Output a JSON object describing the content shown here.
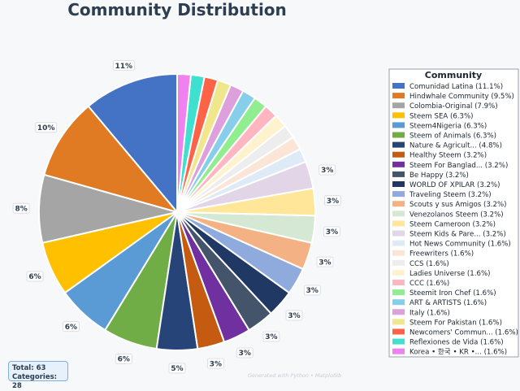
{
  "chart_data": {
    "type": "pie",
    "title": "Community Distribution",
    "legend_title": "Community",
    "legend_position": "right",
    "total_label": "Total: 63",
    "categories_label": "Categories: 28",
    "watermark": "Generated with Python • Matplotlib",
    "slices": [
      {
        "label": "Comunidad Latina",
        "legend": "Comunidad Latina (11.1%)",
        "count": 7,
        "pct_label": "11%",
        "color": "#4472c4"
      },
      {
        "label": "Hindwhale Community",
        "legend": "Hindwhale Community (9.5%)",
        "count": 6,
        "pct_label": "10%",
        "color": "#e07b24"
      },
      {
        "label": "Colombia-Original",
        "legend": "Colombia-Original (7.9%)",
        "count": 5,
        "pct_label": "8%",
        "color": "#a5a5a5"
      },
      {
        "label": "Steem SEA",
        "legend": "Steem SEA (6.3%)",
        "count": 4,
        "pct_label": "6%",
        "color": "#ffc000"
      },
      {
        "label": "Steem4Nigeria",
        "legend": "Steem4Nigeria (6.3%)",
        "count": 4,
        "pct_label": "6%",
        "color": "#5b9bd5"
      },
      {
        "label": "Steem of Animals",
        "legend": "Steem of Animals (6.3%)",
        "count": 4,
        "pct_label": "6%",
        "color": "#70ad47"
      },
      {
        "label": "Nature & Agricult...",
        "legend": "Nature & Agricult... (4.8%)",
        "count": 3,
        "pct_label": "5%",
        "color": "#264478"
      },
      {
        "label": "Healthy Steem",
        "legend": "Healthy Steem (3.2%)",
        "count": 2,
        "pct_label": "3%",
        "color": "#c55a11"
      },
      {
        "label": "Steem For Banglad...",
        "legend": "Steem For Banglad... (3.2%)",
        "count": 2,
        "pct_label": "3%",
        "color": "#7030a0"
      },
      {
        "label": "Be Happy",
        "legend": "Be Happy (3.2%)",
        "count": 2,
        "pct_label": "3%",
        "color": "#44546a"
      },
      {
        "label": "WORLD OF XPILAR",
        "legend": "WORLD OF XPILAR (3.2%)",
        "count": 2,
        "pct_label": "3%",
        "color": "#1f3864"
      },
      {
        "label": "Traveling Steem",
        "legend": "Traveling Steem (3.2%)",
        "count": 2,
        "pct_label": "3%",
        "color": "#8faadc"
      },
      {
        "label": "Scouts y sus Amigos",
        "legend": "Scouts y sus Amigos (3.2%)",
        "count": 2,
        "pct_label": "3%",
        "color": "#f4b183"
      },
      {
        "label": "Venezolanos Steem",
        "legend": "Venezolanos Steem (3.2%)",
        "count": 2,
        "pct_label": "3%",
        "color": "#d5e8d4"
      },
      {
        "label": "Steem Cameroon",
        "legend": "Steem Cameroon (3.2%)",
        "count": 2,
        "pct_label": "3%",
        "color": "#ffe699"
      },
      {
        "label": "Steem Kids & Pare...",
        "legend": "Steem Kids & Pare... (3.2%)",
        "count": 2,
        "pct_label": "3%",
        "color": "#e1d5e7"
      },
      {
        "label": "Hot News Community",
        "legend": "Hot News Community (1.6%)",
        "count": 1,
        "pct_label": "",
        "color": "#deebf7"
      },
      {
        "label": "Freewriters",
        "legend": "Freewriters (1.6%)",
        "count": 1,
        "pct_label": "",
        "color": "#fbe5d6"
      },
      {
        "label": "CCS",
        "legend": "CCS (1.6%)",
        "count": 1,
        "pct_label": "",
        "color": "#ededed"
      },
      {
        "label": "Ladies Universe",
        "legend": "Ladies Universe (1.6%)",
        "count": 1,
        "pct_label": "",
        "color": "#fff2cc"
      },
      {
        "label": "CCC",
        "legend": "CCC (1.6%)",
        "count": 1,
        "pct_label": "",
        "color": "#ffb6c1"
      },
      {
        "label": "Steemit Iron Chef",
        "legend": "Steemit Iron Chef (1.6%)",
        "count": 1,
        "pct_label": "",
        "color": "#90ee90"
      },
      {
        "label": "ART & ARTISTS",
        "legend": "ART & ARTISTS (1.6%)",
        "count": 1,
        "pct_label": "",
        "color": "#87ceeb"
      },
      {
        "label": "Italy",
        "legend": "Italy (1.6%)",
        "count": 1,
        "pct_label": "",
        "color": "#dda0dd"
      },
      {
        "label": "Steem For Pakistan",
        "legend": "Steem For Pakistan (1.6%)",
        "count": 1,
        "pct_label": "",
        "color": "#f0e68c"
      },
      {
        "label": "Newcomers' Commun...",
        "legend": "Newcomers' Commun... (1.6%)",
        "count": 1,
        "pct_label": "",
        "color": "#ff6347"
      },
      {
        "label": "Reflexiones de Vida",
        "legend": "Reflexiones de Vida (1.6%)",
        "count": 1,
        "pct_label": "",
        "color": "#40e0d0"
      },
      {
        "label": "Korea • 한국 • KR •...",
        "legend": "Korea • 한국 • KR •... (1.6%)",
        "count": 1,
        "pct_label": "",
        "color": "#ee82ee"
      }
    ]
  }
}
